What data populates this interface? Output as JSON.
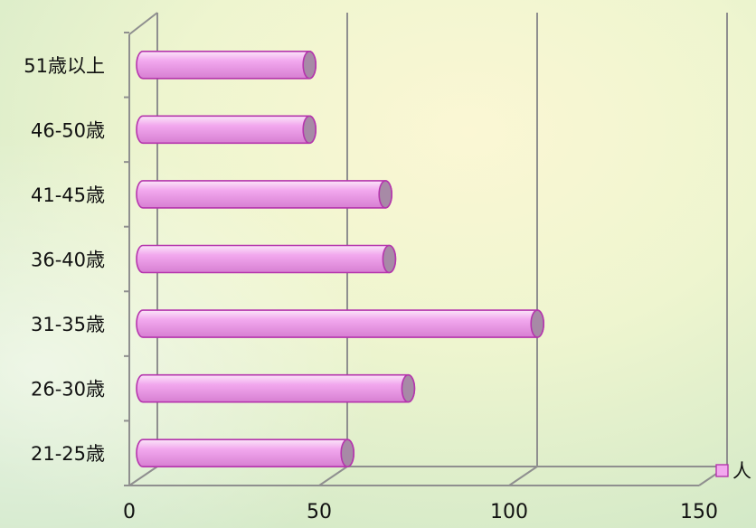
{
  "chart_data": {
    "type": "bar",
    "orientation": "horizontal",
    "style": "3d-cylinder",
    "categories": [
      "21-25歳",
      "26-30歳",
      "31-35歳",
      "36-40歳",
      "41-45歳",
      "46-50歳",
      "51歳以上"
    ],
    "series": [
      {
        "name": "人",
        "values": [
          56,
          72,
          106,
          67,
          66,
          46,
          46
        ]
      }
    ],
    "xlim": [
      0,
      150
    ],
    "xticks": [
      0,
      50,
      100,
      150
    ],
    "grid": true,
    "legend_position": "bottom-right",
    "colors": {
      "bar_fill": "#f2a8ee",
      "bar_light": "#fbe6f9",
      "bar_dark": "#d77fd2",
      "bar_outline": "#b535ad",
      "bar_cap": "#a78aa6",
      "grid": "#8f8f8f"
    }
  }
}
